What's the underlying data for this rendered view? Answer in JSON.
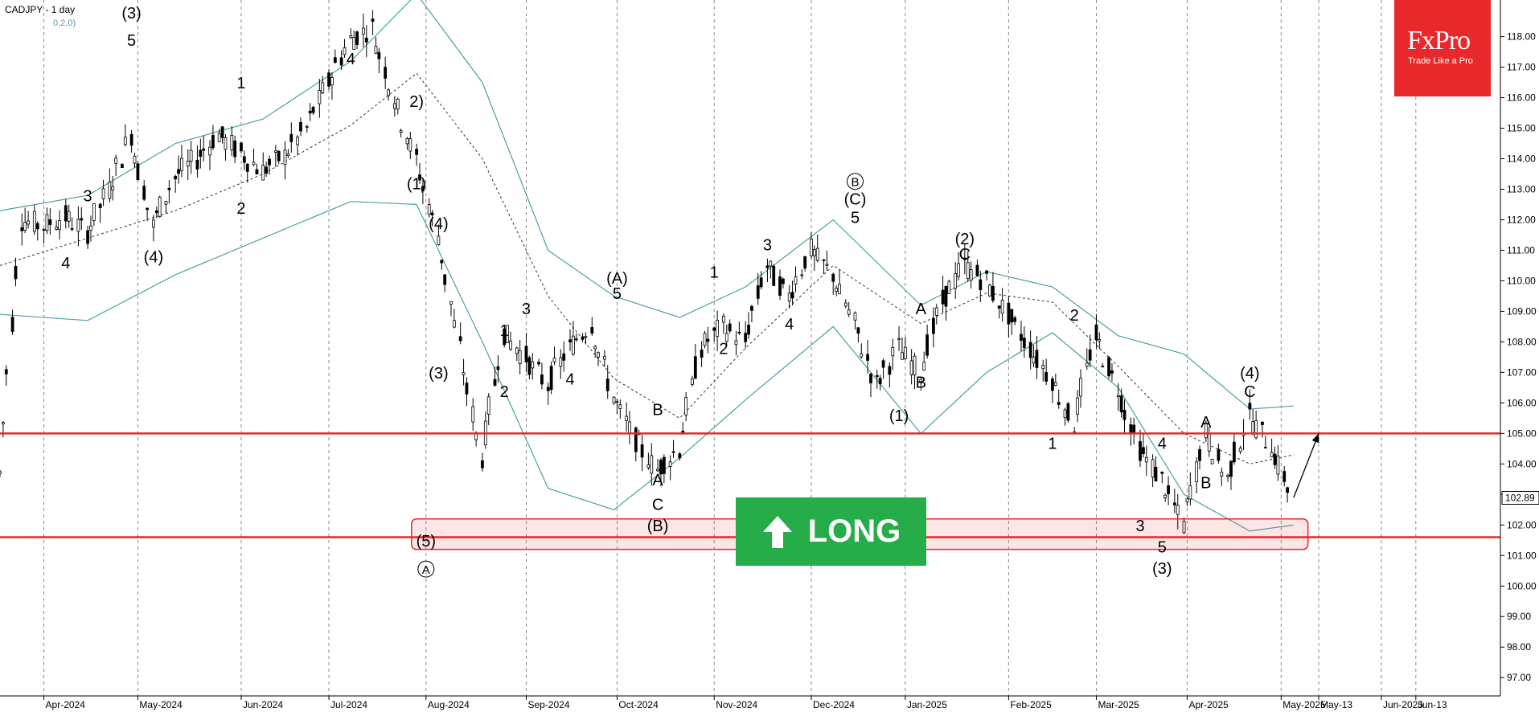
{
  "header": {
    "title": "CADJPY - 1 day",
    "indicator": "0,2,0)"
  },
  "logo": {
    "brand": "FxPro",
    "tagline": "Trade Like a Pro"
  },
  "badge": {
    "label": "LONG",
    "icon": "arrow-up-icon"
  },
  "chart_data": {
    "type": "candlestick",
    "instrument": "CADJPY",
    "timeframe": "1 day",
    "ylim": [
      96.4,
      119.2
    ],
    "y_ticks": [
      97,
      98,
      99,
      100,
      101,
      102,
      103,
      104,
      105,
      106,
      107,
      108,
      109,
      110,
      111,
      112,
      113,
      114,
      115,
      116,
      117,
      118
    ],
    "y_tick_labels": [
      "97.00",
      "98.00",
      "99.00",
      "100.00",
      "101.00",
      "102.00",
      "103.00",
      "104.00",
      "105.00",
      "106.00",
      "107.00",
      "108.00",
      "109.00",
      "110.00",
      "111.00",
      "112.00",
      "113.00",
      "114.00",
      "115.00",
      "116.00",
      "117.00",
      "118.00"
    ],
    "current_price": 102.89,
    "current_price_label": "102.89",
    "x_labels": [
      {
        "label": "Apr-2024",
        "date": "2024-04-01"
      },
      {
        "label": "May-2024",
        "date": "2024-05-01"
      },
      {
        "label": "Jun-2024",
        "date": "2024-06-03"
      },
      {
        "label": "Jul-2024",
        "date": "2024-07-01"
      },
      {
        "label": "Aug-2024",
        "date": "2024-08-01"
      },
      {
        "label": "Sep-2024",
        "date": "2024-09-02"
      },
      {
        "label": "Oct-2024",
        "date": "2024-10-01"
      },
      {
        "label": "Nov-2024",
        "date": "2024-11-01"
      },
      {
        "label": "Dec-2024",
        "date": "2024-12-02"
      },
      {
        "label": "Jan-2025",
        "date": "2025-01-01"
      },
      {
        "label": "Feb-2025",
        "date": "2025-02-03"
      },
      {
        "label": "Mar-2025",
        "date": "2025-03-03"
      },
      {
        "label": "Apr-2025",
        "date": "2025-04-01"
      },
      {
        "label": "May-2025",
        "date": "2025-05-01"
      },
      {
        "label": "May-13",
        "date": "2025-05-13"
      },
      {
        "label": "Jun-2025",
        "date": "2025-06-02"
      },
      {
        "label": "Jun-13",
        "date": "2025-06-13"
      }
    ],
    "close_path": [
      [
        "2024-03-18",
        103.7
      ],
      [
        "2024-03-25",
        112.0
      ],
      [
        "2024-04-01",
        111.8
      ],
      [
        "2024-04-08",
        112.1
      ],
      [
        "2024-04-15",
        111.6
      ],
      [
        "2024-04-22",
        113.0
      ],
      [
        "2024-04-29",
        114.8
      ],
      [
        "2024-05-06",
        111.8
      ],
      [
        "2024-05-13",
        113.4
      ],
      [
        "2024-05-20",
        114.0
      ],
      [
        "2024-05-27",
        114.8
      ],
      [
        "2024-06-03",
        114.2
      ],
      [
        "2024-06-10",
        113.6
      ],
      [
        "2024-06-17",
        114.1
      ],
      [
        "2024-06-24",
        115.0
      ],
      [
        "2024-07-01",
        116.5
      ],
      [
        "2024-07-08",
        117.9
      ],
      [
        "2024-07-15",
        118.3
      ],
      [
        "2024-07-22",
        116.0
      ],
      [
        "2024-07-29",
        114.0
      ],
      [
        "2024-08-05",
        111.5
      ],
      [
        "2024-08-12",
        107.8
      ],
      [
        "2024-08-19",
        104.2
      ],
      [
        "2024-08-26",
        108.3
      ],
      [
        "2024-09-02",
        107.5
      ],
      [
        "2024-09-09",
        106.6
      ],
      [
        "2024-09-16",
        107.8
      ],
      [
        "2024-09-23",
        108.6
      ],
      [
        "2024-09-30",
        106.2
      ],
      [
        "2024-10-07",
        104.8
      ],
      [
        "2024-10-14",
        103.8
      ],
      [
        "2024-10-21",
        104.5
      ],
      [
        "2024-10-28",
        107.8
      ],
      [
        "2024-11-04",
        108.5
      ],
      [
        "2024-11-11",
        108.0
      ],
      [
        "2024-11-18",
        110.5
      ],
      [
        "2024-11-25",
        109.5
      ],
      [
        "2024-12-02",
        111.0
      ],
      [
        "2024-12-09",
        110.2
      ],
      [
        "2024-12-16",
        108.6
      ],
      [
        "2024-12-23",
        106.6
      ],
      [
        "2024-12-30",
        107.8
      ],
      [
        "2025-01-06",
        107.0
      ],
      [
        "2025-01-13",
        109.3
      ],
      [
        "2025-01-20",
        110.5
      ],
      [
        "2025-01-27",
        110.0
      ],
      [
        "2025-02-03",
        108.9
      ],
      [
        "2025-02-10",
        107.8
      ],
      [
        "2025-02-17",
        106.8
      ],
      [
        "2025-02-24",
        105.3
      ],
      [
        "2025-03-03",
        108.2
      ],
      [
        "2025-03-10",
        106.5
      ],
      [
        "2025-03-17",
        104.5
      ],
      [
        "2025-03-24",
        103.5
      ],
      [
        "2025-03-31",
        102.0
      ],
      [
        "2025-04-07",
        105.0
      ],
      [
        "2025-04-14",
        103.5
      ],
      [
        "2025-04-21",
        105.6
      ],
      [
        "2025-04-28",
        104.6
      ],
      [
        "2025-05-05",
        102.89
      ]
    ],
    "ma_line": [
      [
        "2024-03-18",
        110.5
      ],
      [
        "2024-04-15",
        111.4
      ],
      [
        "2024-05-13",
        112.3
      ],
      [
        "2024-06-10",
        113.5
      ],
      [
        "2024-07-08",
        115.1
      ],
      [
        "2024-07-29",
        116.8
      ],
      [
        "2024-08-19",
        114.0
      ],
      [
        "2024-09-09",
        109.5
      ],
      [
        "2024-09-30",
        106.8
      ],
      [
        "2024-10-21",
        105.5
      ],
      [
        "2024-11-11",
        107.8
      ],
      [
        "2024-12-09",
        110.5
      ],
      [
        "2025-01-06",
        108.6
      ],
      [
        "2025-01-27",
        109.6
      ],
      [
        "2025-02-17",
        109.3
      ],
      [
        "2025-03-10",
        107.2
      ],
      [
        "2025-03-31",
        105.0
      ],
      [
        "2025-04-21",
        104.0
      ],
      [
        "2025-05-05",
        104.3
      ]
    ],
    "bb_upper": [
      [
        "2024-03-18",
        112.3
      ],
      [
        "2024-04-15",
        112.8
      ],
      [
        "2024-05-13",
        114.5
      ],
      [
        "2024-06-10",
        115.3
      ],
      [
        "2024-07-08",
        117.2
      ],
      [
        "2024-07-29",
        119.4
      ],
      [
        "2024-08-19",
        116.5
      ],
      [
        "2024-09-09",
        111.0
      ],
      [
        "2024-09-30",
        109.5
      ],
      [
        "2024-10-21",
        108.8
      ],
      [
        "2024-11-11",
        109.8
      ],
      [
        "2024-12-09",
        112.0
      ],
      [
        "2025-01-06",
        109.2
      ],
      [
        "2025-01-27",
        110.3
      ],
      [
        "2025-02-17",
        109.8
      ],
      [
        "2025-03-10",
        108.2
      ],
      [
        "2025-03-31",
        107.6
      ],
      [
        "2025-04-21",
        105.8
      ],
      [
        "2025-05-05",
        105.9
      ]
    ],
    "bb_lower": [
      [
        "2024-03-18",
        108.9
      ],
      [
        "2024-04-15",
        108.7
      ],
      [
        "2024-05-13",
        110.2
      ],
      [
        "2024-06-10",
        111.4
      ],
      [
        "2024-07-08",
        112.6
      ],
      [
        "2024-07-29",
        112.5
      ],
      [
        "2024-08-19",
        108.0
      ],
      [
        "2024-09-09",
        103.2
      ],
      [
        "2024-09-30",
        102.5
      ],
      [
        "2024-10-21",
        104.2
      ],
      [
        "2024-11-11",
        106.1
      ],
      [
        "2024-12-09",
        108.5
      ],
      [
        "2025-01-06",
        105.0
      ],
      [
        "2025-01-27",
        107.0
      ],
      [
        "2025-02-17",
        108.3
      ],
      [
        "2025-03-10",
        106.5
      ],
      [
        "2025-03-31",
        103.0
      ],
      [
        "2025-04-21",
        101.8
      ],
      [
        "2025-05-05",
        102.0
      ]
    ],
    "horizontal_lines": [
      {
        "name": "resistance",
        "value": 105.0,
        "color": "#e8282b"
      },
      {
        "name": "support",
        "value": 101.6,
        "color": "#e8282b"
      }
    ],
    "support_zone": {
      "from_date": "2024-08-01",
      "to_date": "2025-05-07",
      "low": 101.2,
      "high": 102.2
    },
    "forecast_arrow": {
      "from": [
        "2025-05-05",
        102.9
      ],
      "to": [
        "2025-05-13",
        105.0
      ]
    },
    "wave_labels": [
      {
        "text": "(3)",
        "date": "2024-04-29",
        "price": 118.6
      },
      {
        "text": "5",
        "date": "2024-04-29",
        "price": 117.7
      },
      {
        "text": "3",
        "date": "2024-04-15",
        "price": 112.6
      },
      {
        "text": "4",
        "date": "2024-04-08",
        "price": 110.4
      },
      {
        "text": "(4)",
        "date": "2024-05-06",
        "price": 110.6
      },
      {
        "text": "1",
        "date": "2024-06-03",
        "price": 116.3
      },
      {
        "text": "2",
        "date": "2024-06-03",
        "price": 112.2
      },
      {
        "text": "4",
        "date": "2024-07-08",
        "price": 117.1
      },
      {
        "text": "2)",
        "date": "2024-07-29",
        "price": 115.7
      },
      {
        "text": "(1)",
        "date": "2024-07-29",
        "price": 113.0
      },
      {
        "text": "(4)",
        "date": "2024-08-05",
        "price": 111.7
      },
      {
        "text": "(3)",
        "date": "2024-08-05",
        "price": 106.8
      },
      {
        "text": "(5)",
        "date": "2024-08-01",
        "price": 101.3
      },
      {
        "text": "A",
        "date": "2024-08-01",
        "price": 100.4,
        "circled": true
      },
      {
        "text": "1",
        "date": "2024-08-26",
        "price": 108.2
      },
      {
        "text": "2",
        "date": "2024-08-26",
        "price": 106.2
      },
      {
        "text": "3",
        "date": "2024-09-02",
        "price": 108.9
      },
      {
        "text": "4",
        "date": "2024-09-16",
        "price": 106.6
      },
      {
        "text": "(A)",
        "date": "2024-10-01",
        "price": 109.9
      },
      {
        "text": "5",
        "date": "2024-10-01",
        "price": 109.4
      },
      {
        "text": "B",
        "date": "2024-10-14",
        "price": 105.6
      },
      {
        "text": "A",
        "date": "2024-10-14",
        "price": 103.3
      },
      {
        "text": "C",
        "date": "2024-10-14",
        "price": 102.5
      },
      {
        "text": "(B)",
        "date": "2024-10-14",
        "price": 101.8
      },
      {
        "text": "1",
        "date": "2024-11-01",
        "price": 110.1
      },
      {
        "text": "2",
        "date": "2024-11-04",
        "price": 107.6
      },
      {
        "text": "3",
        "date": "2024-11-18",
        "price": 111.0
      },
      {
        "text": "4",
        "date": "2024-11-25",
        "price": 108.4
      },
      {
        "text": "B",
        "date": "2024-12-16",
        "price": 113.1,
        "circled": true
      },
      {
        "text": "(C)",
        "date": "2024-12-16",
        "price": 112.5
      },
      {
        "text": "5",
        "date": "2024-12-16",
        "price": 111.9
      },
      {
        "text": "A",
        "date": "2025-01-06",
        "price": 108.9
      },
      {
        "text": "B",
        "date": "2025-01-06",
        "price": 106.5
      },
      {
        "text": "(1)",
        "date": "2024-12-30",
        "price": 105.4
      },
      {
        "text": "(2)",
        "date": "2025-01-20",
        "price": 111.2
      },
      {
        "text": "C",
        "date": "2025-01-20",
        "price": 110.7
      },
      {
        "text": "2",
        "date": "2025-02-24",
        "price": 108.7
      },
      {
        "text": "1",
        "date": "2025-02-17",
        "price": 104.5
      },
      {
        "text": "4",
        "date": "2025-03-24",
        "price": 104.5
      },
      {
        "text": "3",
        "date": "2025-03-17",
        "price": 101.8
      },
      {
        "text": "5",
        "date": "2025-03-24",
        "price": 101.1
      },
      {
        "text": "(3)",
        "date": "2025-03-24",
        "price": 100.4
      },
      {
        "text": "A",
        "date": "2025-04-07",
        "price": 105.2
      },
      {
        "text": "B",
        "date": "2025-04-07",
        "price": 103.2
      },
      {
        "text": "(4)",
        "date": "2025-04-21",
        "price": 106.8
      },
      {
        "text": "C",
        "date": "2025-04-21",
        "price": 106.2
      }
    ]
  }
}
